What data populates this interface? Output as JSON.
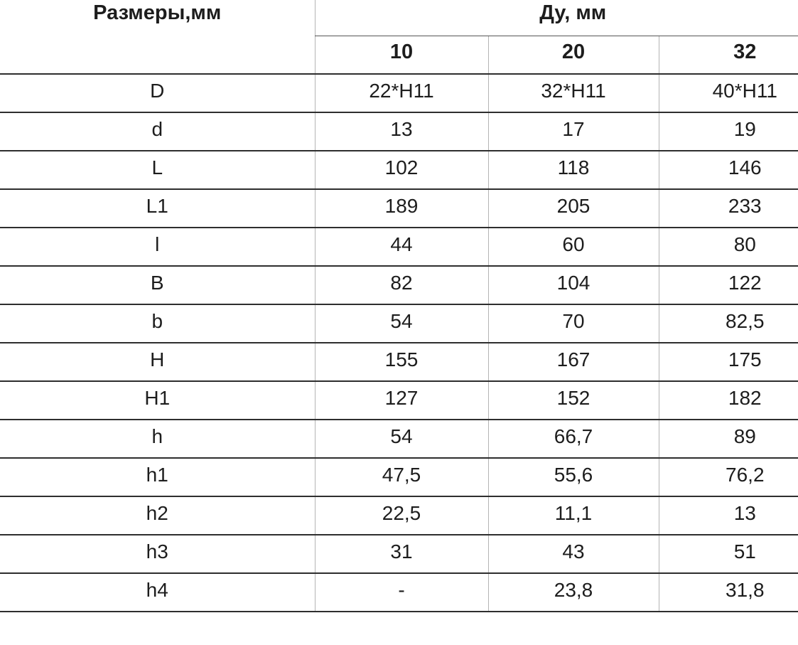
{
  "table": {
    "corner_header": "Размеры,мм",
    "group_header": "Ду, мм",
    "columns": [
      "10",
      "20",
      "32"
    ],
    "rows": [
      {
        "label": "D",
        "values": [
          "22*H11",
          "32*H11",
          "40*H11"
        ]
      },
      {
        "label": "d",
        "values": [
          "13",
          "17",
          "19"
        ]
      },
      {
        "label": "L",
        "values": [
          "102",
          "118",
          "146"
        ]
      },
      {
        "label": "L1",
        "values": [
          "189",
          "205",
          "233"
        ]
      },
      {
        "label": "l",
        "values": [
          "44",
          "60",
          "80"
        ]
      },
      {
        "label": "B",
        "values": [
          "82",
          "104",
          "122"
        ]
      },
      {
        "label": "b",
        "values": [
          "54",
          "70",
          "82,5"
        ]
      },
      {
        "label": "H",
        "values": [
          "155",
          "167",
          "175"
        ]
      },
      {
        "label": "H1",
        "values": [
          "127",
          "152",
          "182"
        ]
      },
      {
        "label": "h",
        "values": [
          "54",
          "66,7",
          "89"
        ]
      },
      {
        "label": "h1",
        "values": [
          "47,5",
          "55,6",
          "76,2"
        ]
      },
      {
        "label": "h2",
        "values": [
          "22,5",
          "11,1",
          "13"
        ]
      },
      {
        "label": "h3",
        "values": [
          "31",
          "43",
          "51"
        ]
      },
      {
        "label": "h4",
        "values": [
          "-",
          "23,8",
          "31,8"
        ]
      }
    ],
    "colors": {
      "background": "#ffffff",
      "text": "#1d1d1d",
      "horizontal_rule": "#2e2e2e",
      "vertical_rule": "#b4b4b4",
      "header_underline": "#555555"
    }
  },
  "chart_data": {
    "type": "table",
    "title": "Размеры,мм / Ду, мм",
    "corner_header": "Размеры,мм",
    "group_header": "Ду, мм",
    "categories": [
      "10",
      "20",
      "32"
    ],
    "row_labels": [
      "D",
      "d",
      "L",
      "L1",
      "l",
      "B",
      "b",
      "H",
      "H1",
      "h",
      "h1",
      "h2",
      "h3",
      "h4"
    ],
    "series": [
      {
        "name": "10",
        "values": [
          "22*H11",
          "13",
          "102",
          "189",
          "44",
          "82",
          "54",
          "155",
          "127",
          "54",
          "47,5",
          "22,5",
          "31",
          "-"
        ]
      },
      {
        "name": "20",
        "values": [
          "32*H11",
          "17",
          "118",
          "205",
          "60",
          "104",
          "70",
          "167",
          "152",
          "66,7",
          "55,6",
          "11,1",
          "43",
          "23,8"
        ]
      },
      {
        "name": "32",
        "values": [
          "40*H11",
          "19",
          "146",
          "233",
          "80",
          "122",
          "82,5",
          "175",
          "182",
          "89",
          "76,2",
          "13",
          "51",
          "31,8"
        ]
      }
    ]
  }
}
